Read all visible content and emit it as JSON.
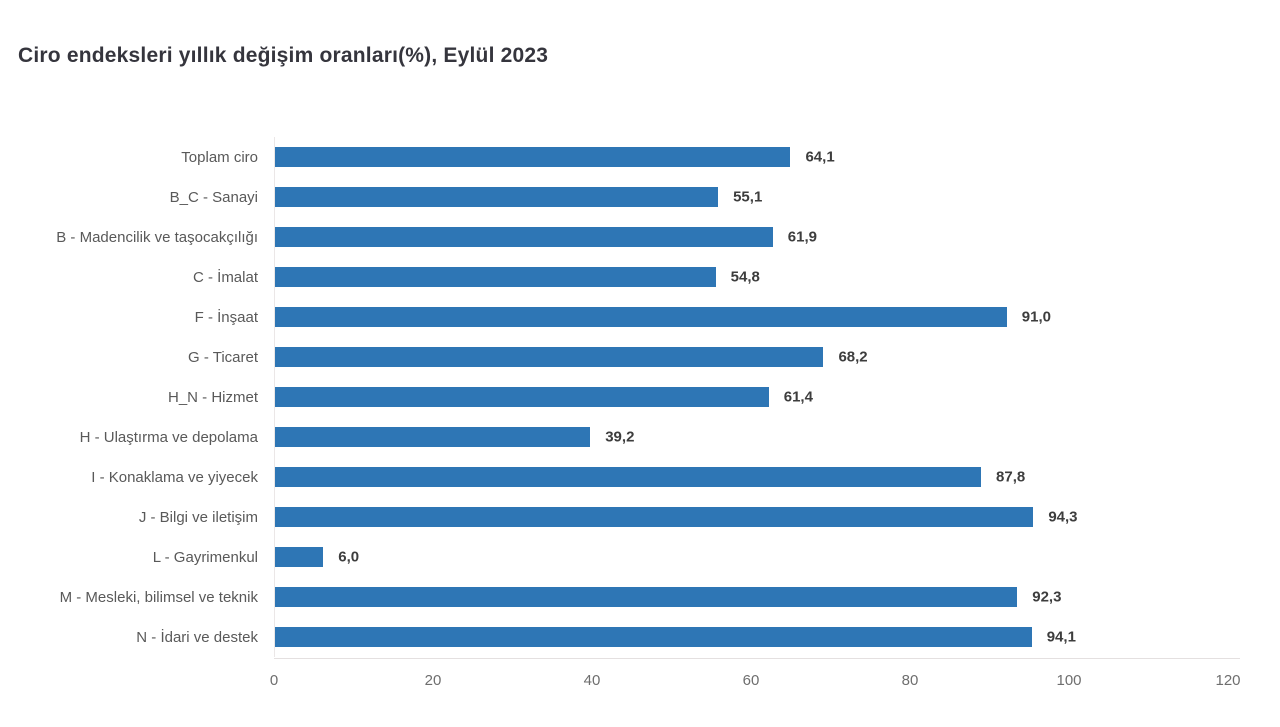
{
  "title": "Ciro endeksleri yıllık değişim oranları(%), Eylül 2023",
  "colors": {
    "bar": "#2e76b5",
    "title_text": "#35353d",
    "category_text": "#595959",
    "value_text": "#3d3d3d",
    "tick_text": "#6e6e6e",
    "axis_line": "#e4e0e0",
    "background": "#ffffff"
  },
  "chart_data": {
    "type": "bar",
    "orientation": "horizontal",
    "title": "Ciro endeksleri yıllık değişim oranları(%), Eylül 2023",
    "categories": [
      "Toplam ciro",
      "B_C - Sanayi",
      "B - Madencilik ve taşocakçılığı",
      "C - İmalat",
      "F - İnşaat",
      "G - Ticaret",
      "H_N - Hizmet",
      "H - Ulaştırma ve depolama",
      "I - Konaklama ve yiyecek",
      "J - Bilgi ve iletişim",
      "L - Gayrimenkul",
      "M - Mesleki, bilimsel ve teknik",
      "N - İdari ve destek"
    ],
    "values": [
      64.1,
      55.1,
      61.9,
      54.8,
      91.0,
      68.2,
      61.4,
      39.2,
      87.8,
      94.3,
      6.0,
      92.3,
      94.1
    ],
    "value_labels": [
      "64,1",
      "55,1",
      "61,9",
      "54,8",
      "91,0",
      "68,2",
      "61,4",
      "39,2",
      "87,8",
      "94,3",
      "6,0",
      "92,3",
      "94,1"
    ],
    "xlabel": "",
    "ylabel": "",
    "xlim": [
      0,
      120
    ],
    "x_ticks": [
      0,
      20,
      40,
      60,
      80,
      100,
      120
    ],
    "grid": false,
    "legend": false,
    "bar_color": "#2e76b5"
  }
}
